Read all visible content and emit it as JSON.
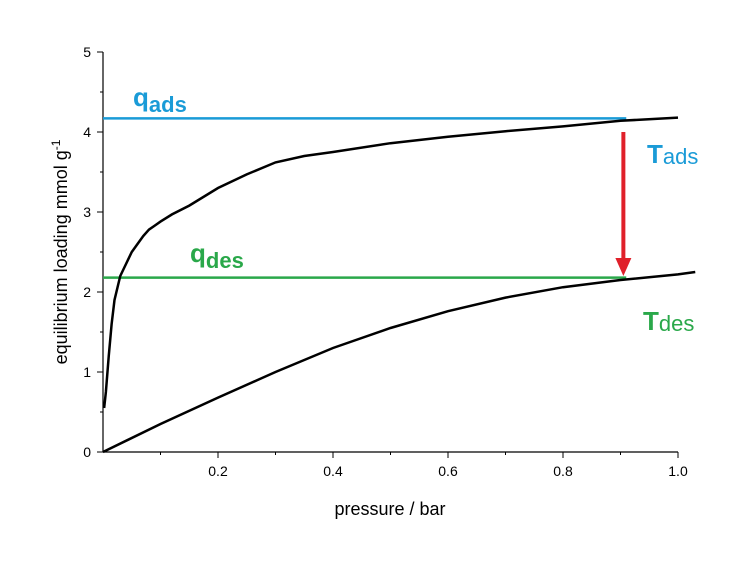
{
  "chart_data": {
    "type": "line",
    "title": "",
    "xlabel": "pressure / bar",
    "ylabel_main": "equilibrium loading mmol g",
    "ylabel_sup": "-1",
    "xlim": [
      0,
      1.0
    ],
    "ylim": [
      0,
      5
    ],
    "x_ticks": [
      0.2,
      0.4,
      0.6,
      0.8,
      1.0
    ],
    "x_tick_labels": [
      "0.2",
      "0.4",
      "0.6",
      "0.8",
      "1.0"
    ],
    "y_ticks": [
      0,
      1,
      2,
      3,
      4,
      5
    ],
    "y_tick_labels": [
      "0",
      "1",
      "2",
      "3",
      "4",
      "5"
    ],
    "grid": false,
    "series": [
      {
        "key": "T_ads",
        "color": "#000000",
        "x": [
          0.002,
          0.005,
          0.01,
          0.015,
          0.02,
          0.03,
          0.04,
          0.05,
          0.06,
          0.07,
          0.08,
          0.09,
          0.1,
          0.12,
          0.15,
          0.2,
          0.25,
          0.3,
          0.35,
          0.4,
          0.5,
          0.6,
          0.7,
          0.8,
          0.9,
          1.0
        ],
        "y": [
          0.55,
          0.75,
          1.2,
          1.6,
          1.9,
          2.2,
          2.35,
          2.5,
          2.6,
          2.7,
          2.78,
          2.83,
          2.88,
          2.97,
          3.08,
          3.3,
          3.47,
          3.62,
          3.7,
          3.75,
          3.86,
          3.94,
          4.01,
          4.07,
          4.14,
          4.18
        ]
      },
      {
        "key": "T_des",
        "color": "#000000",
        "x": [
          0.0,
          0.1,
          0.2,
          0.3,
          0.4,
          0.5,
          0.6,
          0.7,
          0.8,
          0.9,
          1.0,
          1.03
        ],
        "y": [
          0.0,
          0.35,
          0.68,
          1.0,
          1.3,
          1.55,
          1.76,
          1.93,
          2.06,
          2.15,
          2.22,
          2.25
        ]
      }
    ],
    "hlines": [
      {
        "key": "q_ads",
        "y": 4.17,
        "x_start": 0.0,
        "x_end": 0.91,
        "color": "#1a9bd7"
      },
      {
        "key": "q_des",
        "y": 2.18,
        "x_start": 0.0,
        "x_end": 0.91,
        "color": "#2aa84a"
      }
    ],
    "arrow": {
      "x": 0.905,
      "y_start": 4.0,
      "y_end": 2.2,
      "color": "#e0202a"
    },
    "annotations": [
      {
        "key": "q_ads",
        "main": "q",
        "sub": "ads",
        "color": "#1a9bd7"
      },
      {
        "key": "q_des",
        "main": "q",
        "sub": "des",
        "color": "#2aa84a"
      },
      {
        "key": "T_ads",
        "main": "T",
        "sub": "ads",
        "color": "#1a9bd7"
      },
      {
        "key": "T_des",
        "main": "T",
        "sub": "des",
        "color": "#2aa84a"
      }
    ]
  }
}
